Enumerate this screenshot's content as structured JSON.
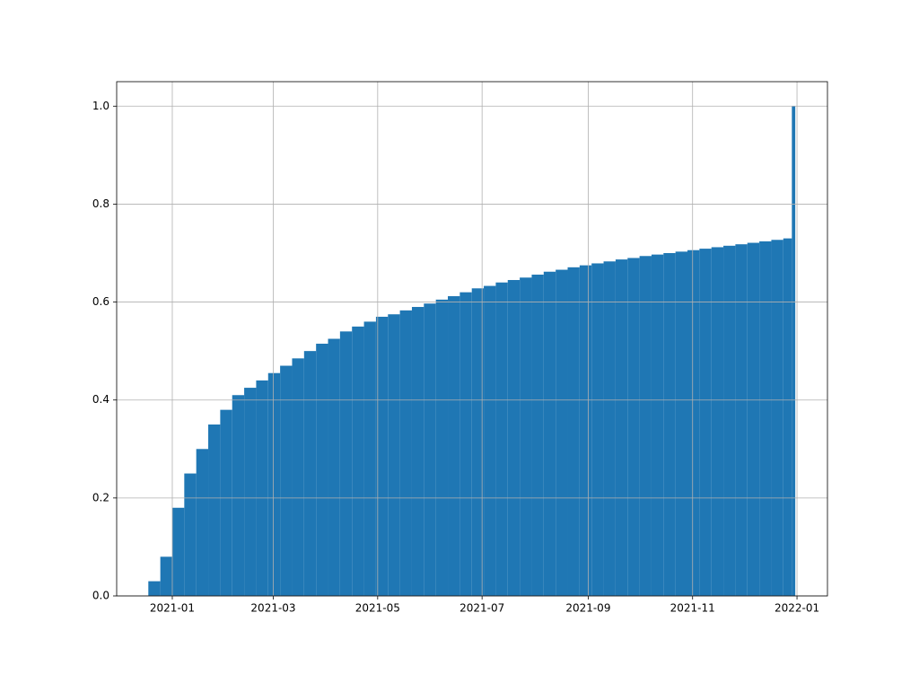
{
  "chart_data": {
    "type": "histogram",
    "bins": [
      -14,
      -7,
      0,
      7,
      14,
      21,
      28,
      35,
      42,
      49,
      56,
      63,
      70,
      77,
      84,
      91,
      98,
      105,
      112,
      119,
      126,
      133,
      140,
      147,
      154,
      161,
      168,
      175,
      182,
      189,
      196,
      203,
      210,
      217,
      224,
      231,
      238,
      245,
      252,
      259,
      266,
      273,
      280,
      287,
      294,
      301,
      308,
      315,
      322,
      329,
      336,
      343,
      350,
      357,
      362,
      364
    ],
    "values": [
      0.03,
      0.08,
      0.18,
      0.25,
      0.3,
      0.35,
      0.38,
      0.41,
      0.425,
      0.44,
      0.455,
      0.47,
      0.485,
      0.5,
      0.515,
      0.525,
      0.54,
      0.55,
      0.56,
      0.57,
      0.575,
      0.583,
      0.59,
      0.597,
      0.605,
      0.612,
      0.62,
      0.628,
      0.633,
      0.64,
      0.645,
      0.65,
      0.656,
      0.662,
      0.666,
      0.671,
      0.675,
      0.679,
      0.683,
      0.687,
      0.69,
      0.694,
      0.697,
      0.7,
      0.703,
      0.706,
      0.709,
      0.712,
      0.715,
      0.718,
      0.721,
      0.724,
      0.727,
      0.73,
      1.0
    ],
    "color": "#1f77b4",
    "xlim": [
      -32.5,
      382.8
    ],
    "xticks": [
      {
        "value": 0,
        "label": "2021-01"
      },
      {
        "value": 59,
        "label": "2021-03"
      },
      {
        "value": 120,
        "label": "2021-05"
      },
      {
        "value": 181,
        "label": "2021-07"
      },
      {
        "value": 243,
        "label": "2021-09"
      },
      {
        "value": 304,
        "label": "2021-11"
      },
      {
        "value": 365,
        "label": "2022-01"
      }
    ],
    "ylim": [
      0,
      1.05
    ],
    "yticks": [
      {
        "value": 0,
        "label": "0.0"
      },
      0.2,
      0.4,
      0.6,
      0.8,
      {
        "value": 1,
        "label": "1.0"
      }
    ],
    "grid": true
  }
}
